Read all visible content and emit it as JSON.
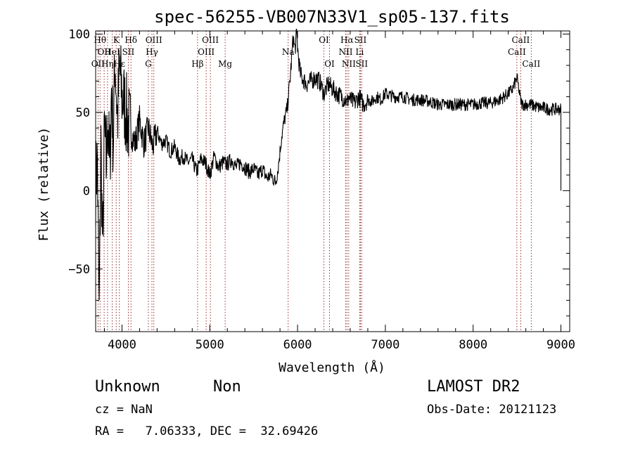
{
  "chart_data": {
    "type": "line",
    "title": "spec-56255-VB007N33V1_sp05-137.fits",
    "xlabel": "Wavelength (Å)",
    "ylabel": "Flux (relative)",
    "xlim": [
      3700,
      9100
    ],
    "ylim": [
      -90,
      102
    ],
    "x_ticks": [
      4000,
      5000,
      6000,
      7000,
      8000,
      9000
    ],
    "y_ticks": [
      -50,
      0,
      50,
      100
    ],
    "grid": false,
    "series": [
      {
        "x": [
          3700,
          3720,
          3740,
          3760,
          3780,
          3800,
          3820,
          3840,
          3860,
          3880,
          3900,
          3920,
          3950,
          3970,
          4000,
          4030,
          4060,
          4100,
          4150,
          4200,
          4250,
          4300,
          4350,
          4400,
          4450,
          4500,
          4550,
          4600,
          4650,
          4700,
          4750,
          4800,
          4850,
          4900,
          4950,
          5000,
          5050,
          5100,
          5150,
          5200,
          5250,
          5300,
          5350,
          5400,
          5450,
          5500,
          5550,
          5600,
          5650,
          5700,
          5750,
          5780,
          5800,
          5820,
          5850,
          5880,
          5900,
          5920,
          5950,
          5970,
          5990,
          6000,
          6010,
          6030,
          6050,
          6080,
          6100,
          6150,
          6200,
          6250,
          6300,
          6350,
          6400,
          6450,
          6500,
          6550,
          6560,
          6580,
          6600,
          6650,
          6700,
          6750,
          6800,
          6850,
          6900,
          6950,
          7000,
          7100,
          7200,
          7300,
          7400,
          7500,
          7600,
          7700,
          7800,
          7900,
          8000,
          8100,
          8200,
          8300,
          8400,
          8450,
          8500,
          8520,
          8540,
          8560,
          8600,
          8650,
          8700,
          8750,
          8800,
          8850,
          8900,
          8950,
          9000,
          9000
        ],
        "y": [
          5,
          20,
          -80,
          30,
          -40,
          40,
          15,
          50,
          10,
          65,
          30,
          85,
          45,
          80,
          60,
          55,
          45,
          38,
          30,
          45,
          30,
          40,
          28,
          38,
          30,
          32,
          25,
          28,
          20,
          22,
          18,
          20,
          12,
          20,
          18,
          10,
          22,
          15,
          18,
          17,
          20,
          15,
          18,
          15,
          12,
          14,
          10,
          14,
          8,
          10,
          5,
          15,
          25,
          35,
          45,
          52,
          62,
          75,
          98,
          90,
          100,
          92,
          85,
          75,
          72,
          70,
          68,
          70,
          72,
          70,
          62,
          68,
          65,
          62,
          60,
          58,
          55,
          60,
          58,
          56,
          60,
          55,
          58,
          57,
          60,
          58,
          62,
          60,
          60,
          58,
          58,
          57,
          55,
          55,
          55,
          55,
          55,
          56,
          56,
          58,
          62,
          65,
          72,
          65,
          58,
          55,
          55,
          55,
          54,
          53,
          53,
          52,
          52,
          52,
          52,
          0
        ]
      }
    ],
    "lines": [
      {
        "wl": 3750,
        "label": "Hθ",
        "row": 0
      },
      {
        "wl": 3797,
        "label": "OII",
        "row": 1
      },
      {
        "wl": 3727,
        "label": "OII",
        "row": 2
      },
      {
        "wl": 3835,
        "label": "Hη",
        "row": 2
      },
      {
        "wl": 3889,
        "label": "HeI",
        "row": 1
      },
      {
        "wl": 3934,
        "label": "K",
        "row": 0
      },
      {
        "wl": 3970,
        "label": "Hε",
        "row": 2
      },
      {
        "wl": 4072,
        "label": "SII",
        "row": 1
      },
      {
        "wl": 4102,
        "label": "Hδ",
        "row": 0
      },
      {
        "wl": 4300,
        "label": "G",
        "row": 2
      },
      {
        "wl": 4341,
        "label": "Hγ",
        "row": 1
      },
      {
        "wl": 4363,
        "label": "OIII",
        "row": 0
      },
      {
        "wl": 4861,
        "label": "Hβ",
        "row": 2
      },
      {
        "wl": 4959,
        "label": "OIII",
        "row": 1
      },
      {
        "wl": 5007,
        "label": "OIII",
        "row": 0
      },
      {
        "wl": 5175,
        "label": "Mg",
        "row": 2
      },
      {
        "wl": 5893,
        "label": "Na",
        "row": 1
      },
      {
        "wl": 6300,
        "label": "OI",
        "row": 0
      },
      {
        "wl": 6364,
        "label": "OI",
        "row": 2
      },
      {
        "wl": 6548,
        "label": "NII",
        "row": 1
      },
      {
        "wl": 6563,
        "label": "Hα",
        "row": 0
      },
      {
        "wl": 6583,
        "label": "NII",
        "row": 2
      },
      {
        "wl": 6708,
        "label": "Li",
        "row": 1
      },
      {
        "wl": 6716,
        "label": "SII",
        "row": 0
      },
      {
        "wl": 6731,
        "label": "SII",
        "row": 2
      },
      {
        "wl": 8498,
        "label": "CaII",
        "row": 1
      },
      {
        "wl": 8542,
        "label": "CaII",
        "row": 0
      },
      {
        "wl": 8662,
        "label": "CaII",
        "row": 2
      }
    ]
  },
  "info": {
    "class": "Unknown",
    "subclass": "Non",
    "survey": "LAMOST DR2",
    "cz": "cz = NaN",
    "obs_date": "Obs-Date: 20121123",
    "radec": "RA =   7.06333, DEC =  32.69426"
  },
  "colors": {
    "spectrum": "#000000",
    "line_marker": "#8b1a1a",
    "axes": "#000000"
  }
}
